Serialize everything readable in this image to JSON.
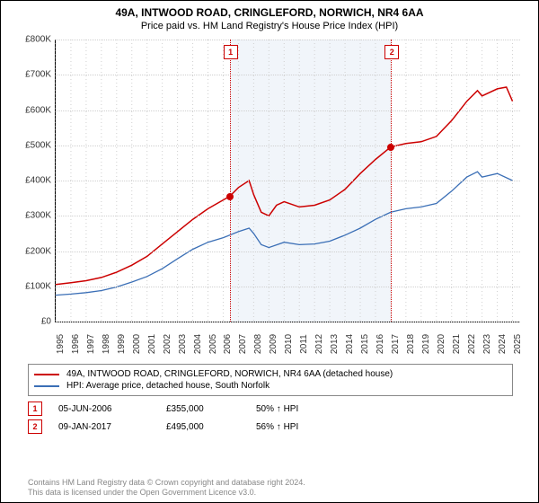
{
  "title": "49A, INTWOOD ROAD, CRINGLEFORD, NORWICH, NR4 6AA",
  "subtitle": "Price paid vs. HM Land Registry's House Price Index (HPI)",
  "chart": {
    "type": "line",
    "ylim": [
      0,
      800
    ],
    "ytick_step": 100,
    "ytick_labels": [
      "£0",
      "£100K",
      "£200K",
      "£300K",
      "£400K",
      "£500K",
      "£600K",
      "£700K",
      "£800K"
    ],
    "xlim": [
      1995,
      2025.5
    ],
    "xticks": [
      1995,
      1996,
      1997,
      1998,
      1999,
      2000,
      2001,
      2002,
      2003,
      2004,
      2005,
      2006,
      2007,
      2008,
      2009,
      2010,
      2011,
      2012,
      2013,
      2014,
      2015,
      2016,
      2017,
      2018,
      2019,
      2020,
      2021,
      2022,
      2023,
      2024,
      2025
    ],
    "grid_color": "#d0d0d0",
    "background_color": "#ffffff",
    "shaded": {
      "from": 2006.42,
      "to": 2017.02,
      "color": "#e6ecf5"
    },
    "series": [
      {
        "name": "49A, INTWOOD ROAD, CRINGLEFORD, NORWICH, NR4 6AA (detached house)",
        "color": "#cc0000",
        "width": 1.5,
        "data": [
          [
            1995,
            105
          ],
          [
            1996,
            110
          ],
          [
            1997,
            116
          ],
          [
            1998,
            125
          ],
          [
            1999,
            140
          ],
          [
            2000,
            160
          ],
          [
            2001,
            185
          ],
          [
            2002,
            220
          ],
          [
            2003,
            255
          ],
          [
            2004,
            290
          ],
          [
            2005,
            320
          ],
          [
            2006,
            345
          ],
          [
            2006.42,
            355
          ],
          [
            2007,
            380
          ],
          [
            2007.7,
            400
          ],
          [
            2008,
            360
          ],
          [
            2008.5,
            310
          ],
          [
            2009,
            300
          ],
          [
            2009.5,
            330
          ],
          [
            2010,
            340
          ],
          [
            2011,
            325
          ],
          [
            2012,
            330
          ],
          [
            2013,
            345
          ],
          [
            2014,
            375
          ],
          [
            2015,
            420
          ],
          [
            2016,
            460
          ],
          [
            2017,
            495
          ],
          [
            2018,
            505
          ],
          [
            2019,
            510
          ],
          [
            2020,
            525
          ],
          [
            2021,
            570
          ],
          [
            2022,
            625
          ],
          [
            2022.7,
            655
          ],
          [
            2023,
            640
          ],
          [
            2024,
            660
          ],
          [
            2024.6,
            665
          ],
          [
            2025,
            625
          ]
        ]
      },
      {
        "name": "HPI: Average price, detached house, South Norfolk",
        "color": "#3b6fb6",
        "width": 1.3,
        "data": [
          [
            1995,
            75
          ],
          [
            1996,
            78
          ],
          [
            1997,
            82
          ],
          [
            1998,
            88
          ],
          [
            1999,
            98
          ],
          [
            2000,
            112
          ],
          [
            2001,
            128
          ],
          [
            2002,
            150
          ],
          [
            2003,
            178
          ],
          [
            2004,
            205
          ],
          [
            2005,
            225
          ],
          [
            2006,
            238
          ],
          [
            2007,
            255
          ],
          [
            2007.7,
            265
          ],
          [
            2008,
            250
          ],
          [
            2008.5,
            218
          ],
          [
            2009,
            210
          ],
          [
            2010,
            225
          ],
          [
            2011,
            218
          ],
          [
            2012,
            220
          ],
          [
            2013,
            228
          ],
          [
            2014,
            245
          ],
          [
            2015,
            265
          ],
          [
            2016,
            290
          ],
          [
            2017,
            310
          ],
          [
            2018,
            320
          ],
          [
            2019,
            325
          ],
          [
            2020,
            335
          ],
          [
            2021,
            370
          ],
          [
            2022,
            410
          ],
          [
            2022.7,
            425
          ],
          [
            2023,
            410
          ],
          [
            2024,
            420
          ],
          [
            2025,
            400
          ]
        ]
      }
    ],
    "markers": [
      {
        "n": "1",
        "x": 2006.42,
        "y": 355
      },
      {
        "n": "2",
        "x": 2017.02,
        "y": 495
      }
    ]
  },
  "legend": {
    "series1_label": "49A, INTWOOD ROAD, CRINGLEFORD, NORWICH, NR4 6AA (detached house)",
    "series2_label": "HPI: Average price, detached house, South Norfolk"
  },
  "events": [
    {
      "n": "1",
      "date": "05-JUN-2006",
      "price": "£355,000",
      "hpi": "50% ↑ HPI"
    },
    {
      "n": "2",
      "date": "09-JAN-2017",
      "price": "£495,000",
      "hpi": "56% ↑ HPI"
    }
  ],
  "footer": {
    "line1": "Contains HM Land Registry data © Crown copyright and database right 2024.",
    "line2": "This data is licensed under the Open Government Licence v3.0."
  }
}
